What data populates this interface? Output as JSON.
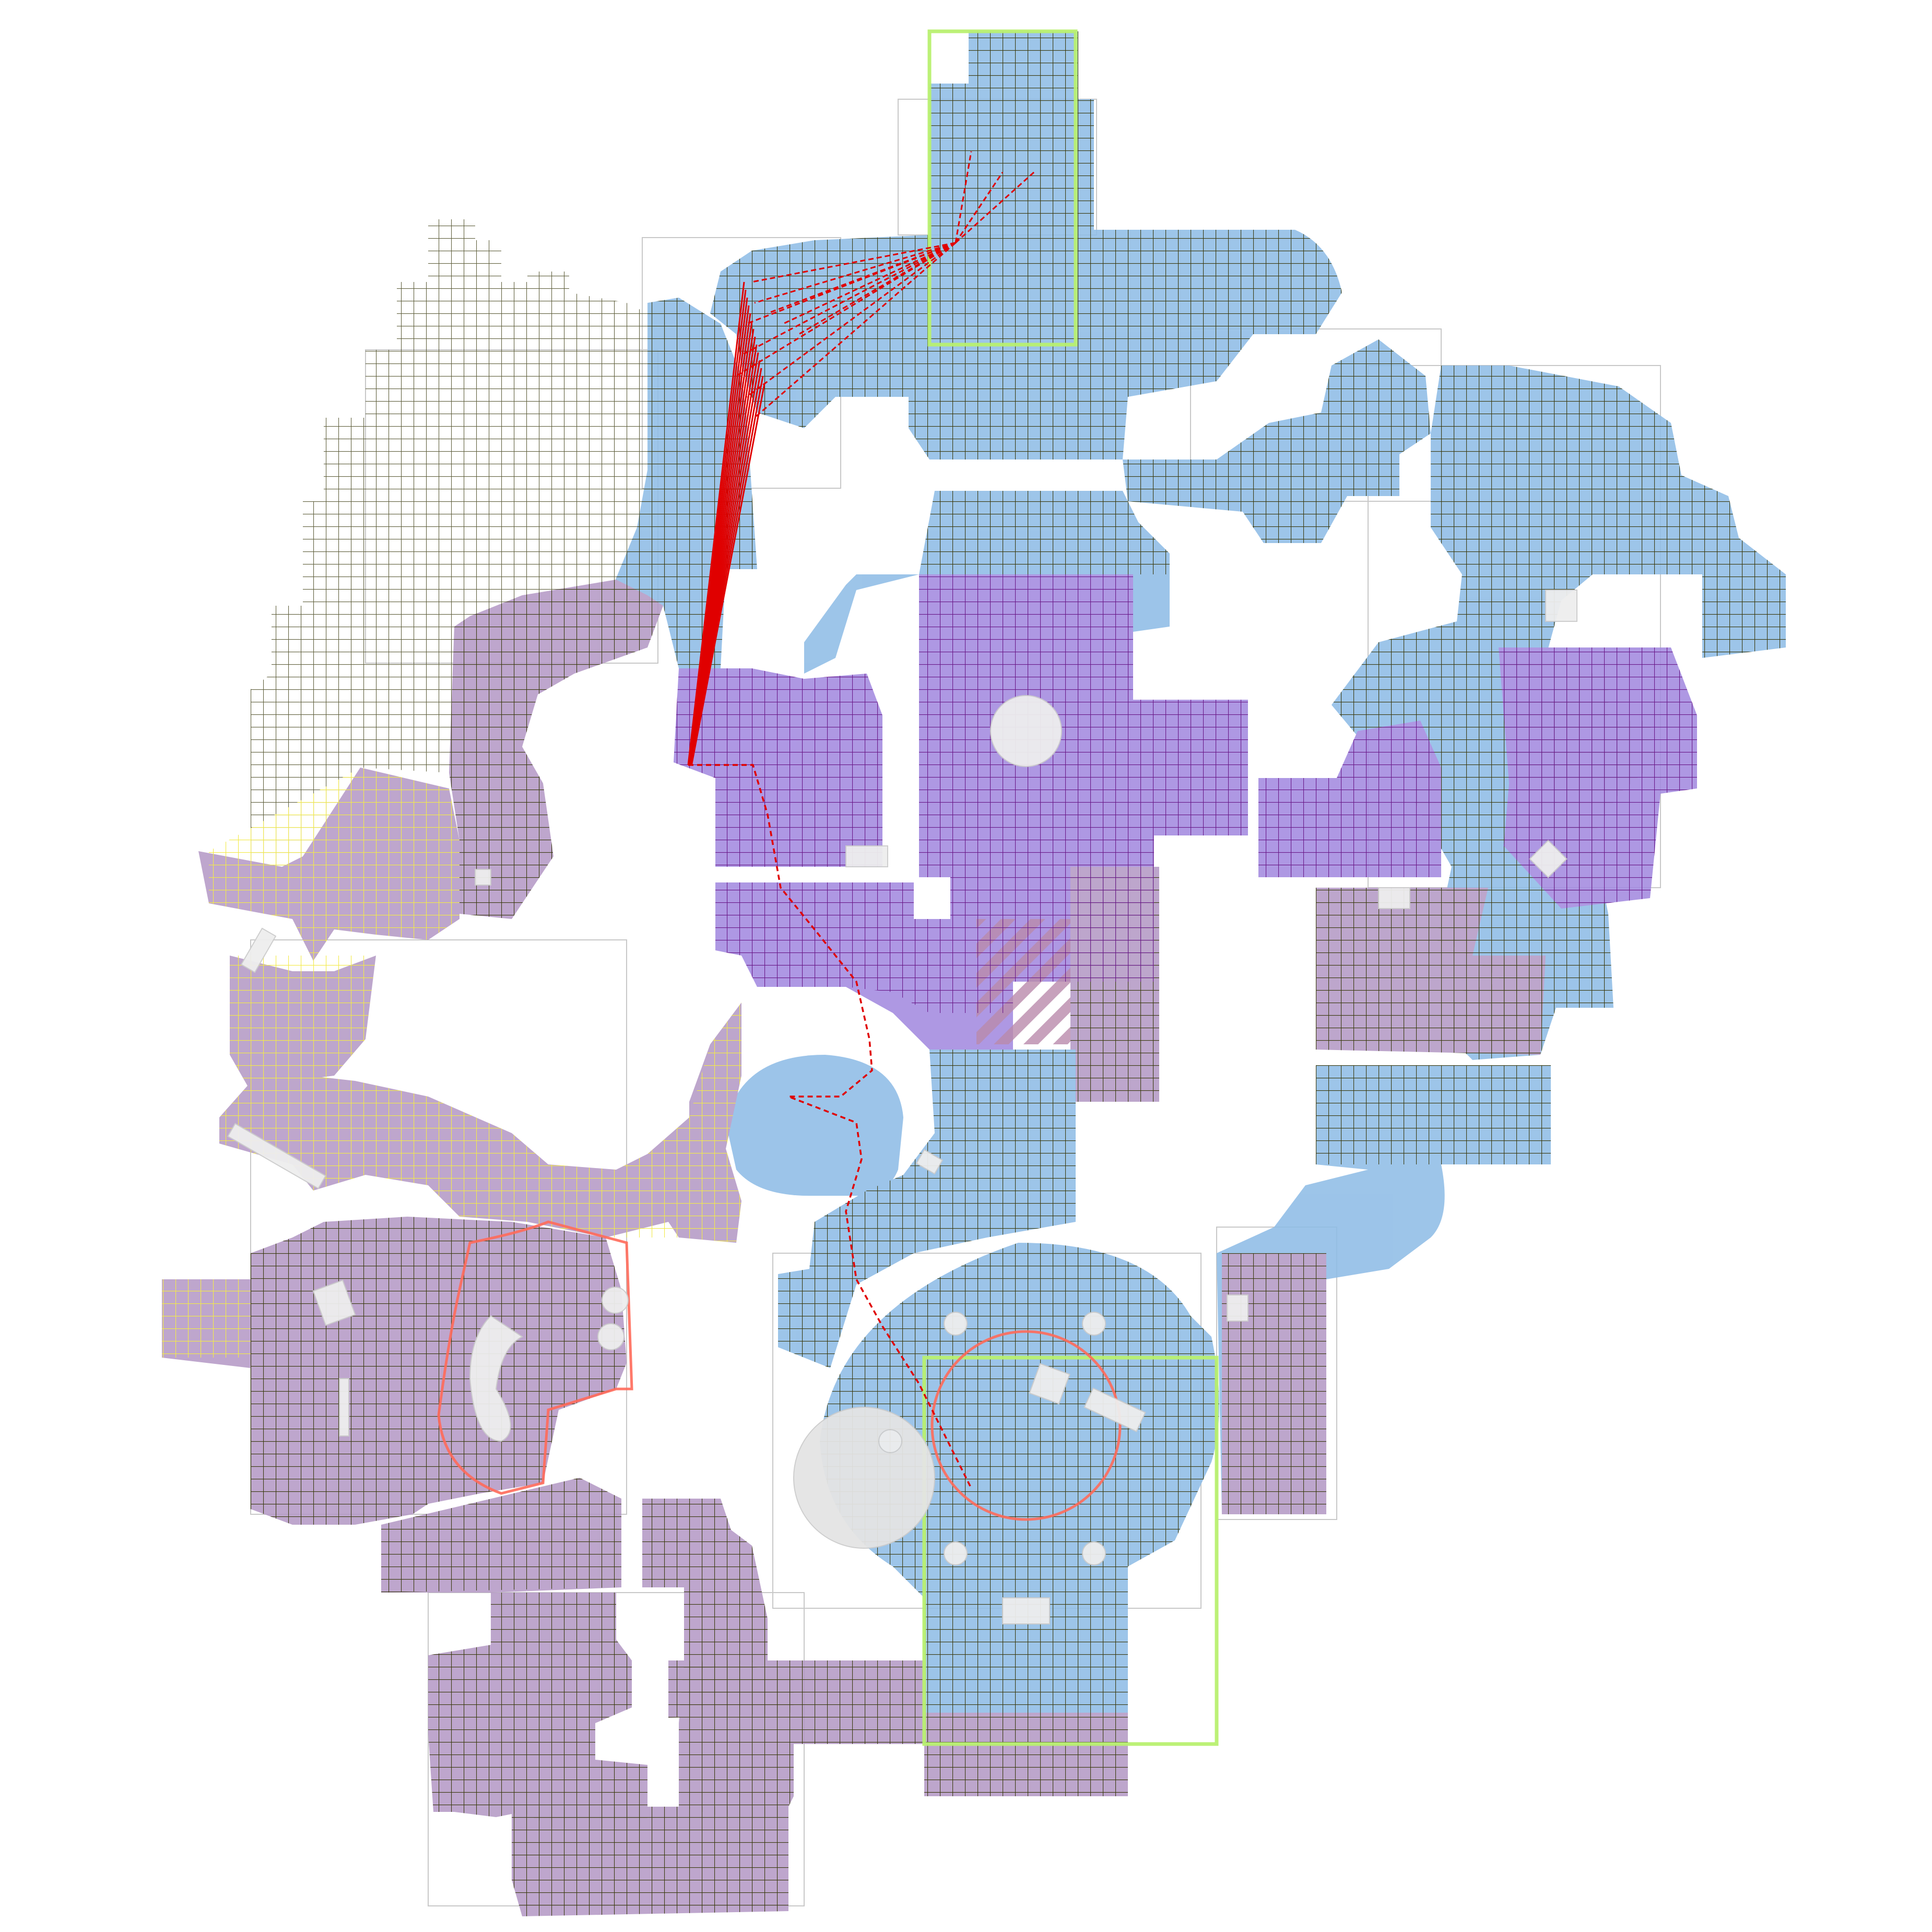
{
  "map": {
    "kind": "navmesh-grid-overlay",
    "has_text": false,
    "colors": {
      "background": "#ffffff",
      "cool_floor": "#8fbde6",
      "warm_floor": "#b59ac6",
      "purple_floor": "#a38ae0",
      "grid_dark": "#3b3b10",
      "grid_yellow": "#f2ea4a",
      "grid_purple": "#6a1a8a",
      "grid_gray": "#c8c8c8",
      "spawn_green": "#b8f070",
      "site_red": "#ff6a5a",
      "path_red": "#e00000",
      "obstacle": "#eeeeee"
    },
    "legend_icons": [
      {
        "name": "spawn-zone-icon",
        "shape": "green outlined rectangle"
      },
      {
        "name": "bombsite-icon",
        "shape": "red circle"
      },
      {
        "name": "path-trace-icon",
        "shape": "red dashed polyline"
      }
    ]
  }
}
